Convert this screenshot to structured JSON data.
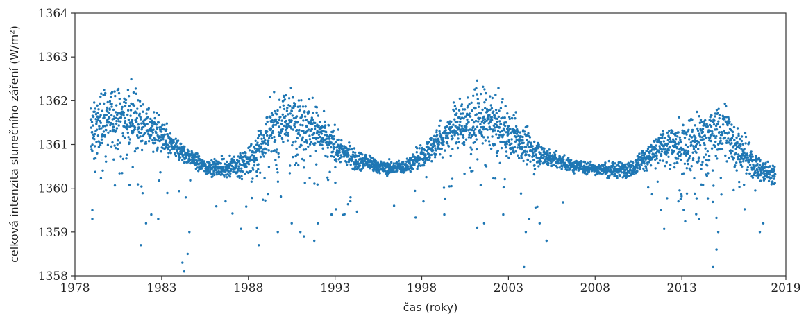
{
  "chart_data": {
    "type": "scatter",
    "title": "",
    "xlabel": "čas (roky)",
    "ylabel": "celková intenzita slunečního záření (W/m²)",
    "xlim": [
      1978,
      2019
    ],
    "ylim": [
      1358,
      1364
    ],
    "xticks": [
      "1978",
      "1983",
      "1988",
      "1993",
      "1998",
      "2003",
      "2008",
      "2013",
      "2019"
    ],
    "xtick_values": [
      1978,
      1983,
      1988,
      1993,
      1998,
      2003,
      2008,
      2013,
      2019
    ],
    "yticks": [
      "1358",
      "1359",
      "1360",
      "1361",
      "1362",
      "1363",
      "1364"
    ],
    "ytick_values": [
      1358,
      1359,
      1360,
      1361,
      1362,
      1363,
      1364
    ],
    "grid": false,
    "marker_color": "#1f77b4",
    "series": [
      {
        "name": "",
        "trend": [
          [
            1978.9,
            1361.3
          ],
          [
            1979.5,
            1361.55
          ],
          [
            1980.5,
            1361.7
          ],
          [
            1981.5,
            1361.55
          ],
          [
            1982.5,
            1361.35
          ],
          [
            1983.5,
            1361.0
          ],
          [
            1984.5,
            1360.75
          ],
          [
            1985.5,
            1360.5
          ],
          [
            1986.5,
            1360.45
          ],
          [
            1987.5,
            1360.5
          ],
          [
            1988.3,
            1360.7
          ],
          [
            1989.0,
            1361.2
          ],
          [
            1989.8,
            1361.55
          ],
          [
            1990.5,
            1361.6
          ],
          [
            1991.3,
            1361.5
          ],
          [
            1992.0,
            1361.3
          ],
          [
            1993.0,
            1360.95
          ],
          [
            1994.0,
            1360.7
          ],
          [
            1995.0,
            1360.55
          ],
          [
            1996.0,
            1360.45
          ],
          [
            1997.0,
            1360.5
          ],
          [
            1998.0,
            1360.7
          ],
          [
            1999.0,
            1361.1
          ],
          [
            2000.0,
            1361.45
          ],
          [
            2001.0,
            1361.55
          ],
          [
            2002.0,
            1361.6
          ],
          [
            2003.0,
            1361.3
          ],
          [
            2004.0,
            1360.95
          ],
          [
            2005.0,
            1360.75
          ],
          [
            2006.0,
            1360.6
          ],
          [
            2007.0,
            1360.5
          ],
          [
            2008.0,
            1360.45
          ],
          [
            2009.0,
            1360.4
          ],
          [
            2010.0,
            1360.45
          ],
          [
            2011.0,
            1360.7
          ],
          [
            2012.0,
            1360.95
          ],
          [
            2013.0,
            1361.05
          ],
          [
            2014.0,
            1361.1
          ],
          [
            2015.0,
            1361.3
          ],
          [
            2015.5,
            1361.4
          ],
          [
            2016.0,
            1361.05
          ],
          [
            2017.0,
            1360.55
          ],
          [
            2018.0,
            1360.35
          ],
          [
            2018.4,
            1360.3
          ]
        ],
        "dips": [
          [
            1979.0,
            1359.3
          ],
          [
            1979.0,
            1359.5
          ],
          [
            1981.8,
            1358.7
          ],
          [
            1982.1,
            1359.2
          ],
          [
            1982.4,
            1359.4
          ],
          [
            1982.8,
            1359.3
          ],
          [
            1984.2,
            1358.3
          ],
          [
            1984.3,
            1358.1
          ],
          [
            1984.5,
            1358.5
          ],
          [
            1984.6,
            1359.0
          ],
          [
            1988.6,
            1358.7
          ],
          [
            1988.5,
            1359.1
          ],
          [
            1989.7,
            1359.0
          ],
          [
            1990.5,
            1359.2
          ],
          [
            1991.0,
            1359.0
          ],
          [
            1991.2,
            1358.9
          ],
          [
            1991.8,
            1358.8
          ],
          [
            1992.0,
            1359.2
          ],
          [
            1992.8,
            1359.4
          ],
          [
            1996.4,
            1359.6
          ],
          [
            1998.1,
            1359.7
          ],
          [
            1999.3,
            1359.4
          ],
          [
            2001.2,
            1359.1
          ],
          [
            2001.6,
            1359.2
          ],
          [
            2002.7,
            1359.4
          ],
          [
            2003.9,
            1358.2
          ],
          [
            2004.0,
            1359.0
          ],
          [
            2004.2,
            1359.3
          ],
          [
            2004.8,
            1359.2
          ],
          [
            2005.2,
            1358.8
          ],
          [
            2011.8,
            1359.5
          ],
          [
            2012.8,
            1359.7
          ],
          [
            2014.0,
            1359.3
          ],
          [
            2014.8,
            1358.2
          ],
          [
            2015.0,
            1358.6
          ],
          [
            2015.1,
            1359.0
          ],
          [
            2017.5,
            1359.0
          ],
          [
            2017.7,
            1359.2
          ]
        ]
      }
    ]
  }
}
